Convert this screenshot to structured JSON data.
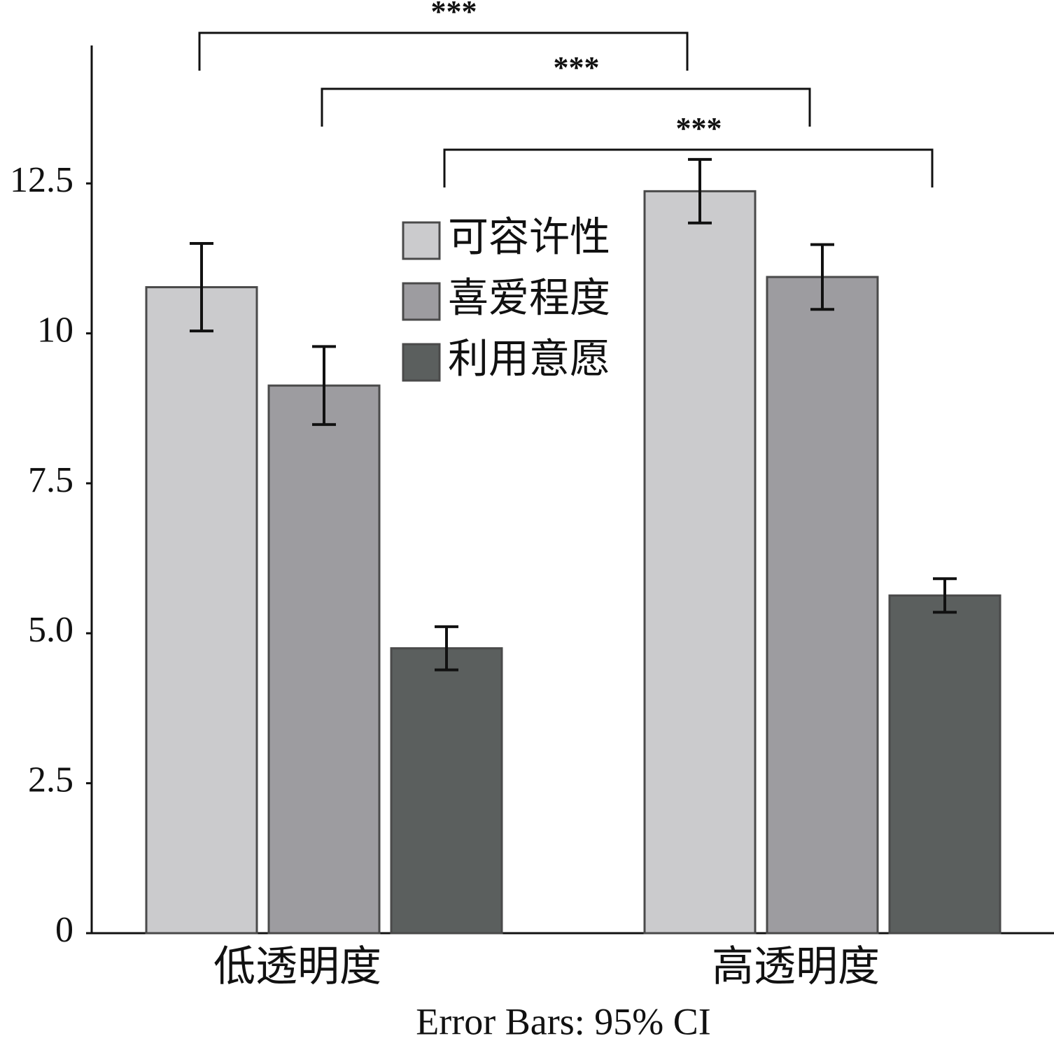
{
  "chart_data": {
    "type": "bar",
    "caption": "Error Bars: 95% CI",
    "categories": [
      "低透明度",
      "高透明度"
    ],
    "series": [
      {
        "name": "可容许性",
        "color": "#cbcbcd",
        "values": [
          10.77,
          12.37
        ],
        "errors": [
          0.73,
          0.53
        ]
      },
      {
        "name": "喜爱程度",
        "color": "#9d9ca0",
        "values": [
          9.13,
          10.94
        ],
        "errors": [
          0.65,
          0.54
        ]
      },
      {
        "name": "利用意愿",
        "color": "#5b5f5e",
        "values": [
          4.75,
          5.63
        ],
        "errors": [
          0.36,
          0.28
        ]
      }
    ],
    "annotations": [
      "***",
      "***",
      "***"
    ],
    "ylim": [
      0,
      14.8
    ],
    "yticks": [
      0,
      2.5,
      {
        "value": 5,
        "label": "5.0"
      },
      7.5,
      10,
      12.5
    ]
  }
}
